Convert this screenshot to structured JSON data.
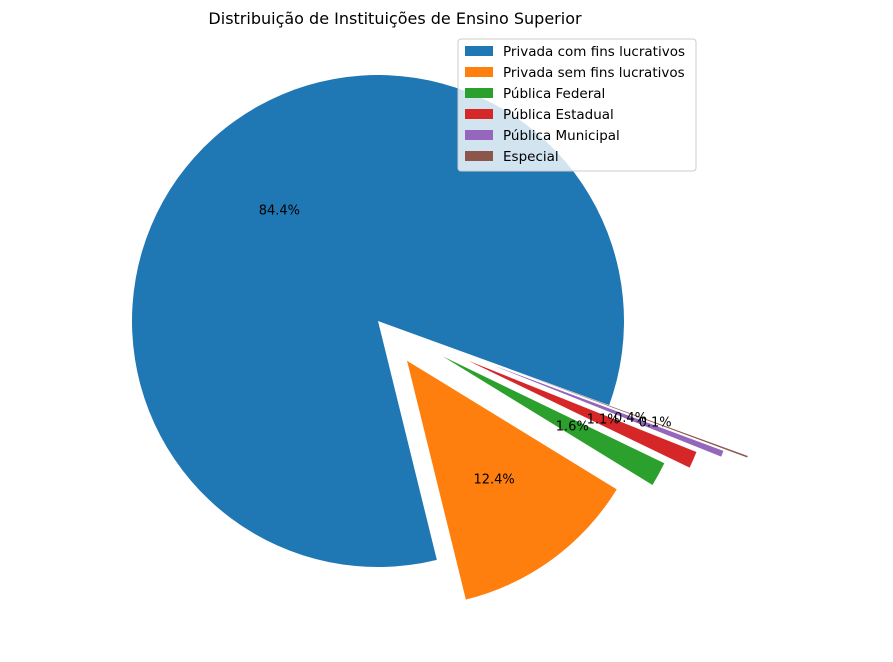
{
  "chart_data": {
    "type": "pie",
    "title": "Distribuição de Instituições de Ensino Superior",
    "legend_position": "upper-right",
    "start_angle_deg": -20,
    "counterclockwise": true,
    "slices": [
      {
        "label": "Privada com fins lucrativos",
        "value": 84.4,
        "pct_label": "84.4%",
        "color": "#1f77b4",
        "explode": 0
      },
      {
        "label": "Privada sem fins lucrativos",
        "value": 12.4,
        "pct_label": "12.4%",
        "color": "#ff7f0e",
        "explode": 0.2
      },
      {
        "label": "Pública Federal",
        "value": 1.6,
        "pct_label": "1.6%",
        "color": "#2ca02c",
        "explode": 0.3
      },
      {
        "label": "Pública Estadual",
        "value": 1.1,
        "pct_label": "1.1%",
        "color": "#d62728",
        "explode": 0.4
      },
      {
        "label": "Pública Municipal",
        "value": 0.4,
        "pct_label": "0.4%",
        "color": "#9467bd",
        "explode": 0.5
      },
      {
        "label": "Especial",
        "value": 0.1,
        "pct_label": "0.1%",
        "color": "#8c564b",
        "explode": 0.6
      }
    ]
  }
}
